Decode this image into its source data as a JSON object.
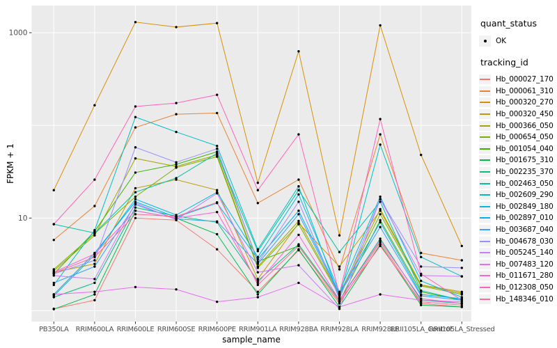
{
  "panel": {
    "bg": "#EBEBEB",
    "grid": "#FFFFFF",
    "tick_color": "#333333",
    "tick_label_color": "#4D4D4D",
    "point_color": "#000000",
    "legend_key_bg": "#F2F2F2"
  },
  "axes": {
    "x_label": "sample_name",
    "y_label": "FPKM + 1",
    "y_tick_labels": [
      "1000",
      "10"
    ],
    "y_tick_values": [
      1000,
      10
    ]
  },
  "legend": {
    "quant_status_title": "quant_status",
    "quant_status_items": [
      {
        "label": "OK",
        "marker": "black-point"
      }
    ],
    "tracking_id_title": "tracking_id"
  },
  "chart_data": {
    "type": "line",
    "title": "",
    "xlabel": "sample_name",
    "ylabel": "FPKM + 1",
    "y_scale": "log10",
    "ylim": [
      0.75,
      2000
    ],
    "grid": "on",
    "legend_position": "right",
    "y_gridline_values": [
      1,
      10,
      100,
      1000
    ],
    "categories": [
      "PB350LA",
      "RRIM600LA",
      "RRIM600LE",
      "RRIM600SE",
      "RRIM600PE",
      "RRIM901LA",
      "RRIM928BA",
      "RRIM928LA",
      "RRIM928LE",
      "RRII105LA_Control",
      "RRII105LA_Stressed"
    ],
    "series": [
      {
        "name": "Hb_000027_170",
        "color": "#F8766D",
        "values": [
          1.05,
          1.3,
          10,
          9.5,
          4.6,
          1.6,
          4.5,
          1.2,
          5.5,
          1.2,
          1.1
        ]
      },
      {
        "name": "Hb_000061_310",
        "color": "#EA8331",
        "values": [
          5.8,
          13.5,
          95,
          132,
          136,
          14.5,
          26,
          2.8,
          80,
          4.2,
          3.5
        ]
      },
      {
        "name": "Hb_000320_270",
        "color": "#D89000",
        "values": [
          20,
          165,
          1300,
          1150,
          1270,
          24,
          630,
          6.5,
          1200,
          48,
          5.0
        ]
      },
      {
        "name": "Hb_000320_450",
        "color": "#C09B00",
        "values": [
          2.6,
          3.2,
          21,
          26,
          20,
          2.2,
          8.8,
          3.0,
          12,
          1.9,
          1.6
        ]
      },
      {
        "name": "Hb_000366_050",
        "color": "#A3A500",
        "values": [
          2.7,
          6.5,
          44,
          36,
          48,
          3.0,
          9.3,
          1.5,
          12.5,
          1.9,
          1.55
        ]
      },
      {
        "name": "Hb_000654_050",
        "color": "#7CAE00",
        "values": [
          2.8,
          6.8,
          17,
          35,
          46,
          2.9,
          8.6,
          1.45,
          11,
          1.85,
          1.5
        ]
      },
      {
        "name": "Hb_001054_040",
        "color": "#39B600",
        "values": [
          2.5,
          7.2,
          31,
          38,
          52,
          3.4,
          5.0,
          1.25,
          9.5,
          1.6,
          1.3
        ]
      },
      {
        "name": "Hb_001675_310",
        "color": "#00BB4E",
        "values": [
          1.04,
          1.5,
          12,
          10,
          6.7,
          1.5,
          4.6,
          1.1,
          5.2,
          1.15,
          1.1
        ]
      },
      {
        "name": "Hb_002235_370",
        "color": "#00BF7D",
        "values": [
          1.4,
          2.0,
          13,
          10.5,
          9.0,
          2.1,
          5.2,
          1.3,
          6.0,
          1.3,
          1.2
        ]
      },
      {
        "name": "Hb_002463_050",
        "color": "#00C1A3",
        "values": [
          8.6,
          6.9,
          19,
          27,
          50,
          4.4,
          20,
          4.3,
          15,
          1.65,
          1.3
        ]
      },
      {
        "name": "Hb_002609_290",
        "color": "#00BFC4",
        "values": [
          1.9,
          7.4,
          123,
          85,
          60,
          4.6,
          22,
          1.4,
          62,
          3.8,
          2.35
        ]
      },
      {
        "name": "Hb_002849_180",
        "color": "#00BAE0",
        "values": [
          1.45,
          4.0,
          16,
          10.8,
          19,
          3.8,
          18,
          1.6,
          17,
          2.1,
          1.4
        ]
      },
      {
        "name": "Hb_002897_010",
        "color": "#00B0F6",
        "values": [
          1.5,
          4.2,
          15,
          10.2,
          14.5,
          3.6,
          12,
          1.55,
          9.0,
          1.5,
          1.35
        ]
      },
      {
        "name": "Hb_003687_040",
        "color": "#35A2FF",
        "values": [
          2.0,
          3.0,
          14,
          9.8,
          9.2,
          3.2,
          11,
          1.5,
          8.0,
          1.45,
          1.3
        ]
      },
      {
        "name": "Hb_004678_030",
        "color": "#9590FF",
        "values": [
          2.5,
          3.5,
          58,
          40,
          56,
          3.3,
          15,
          1.35,
          16,
          3.0,
          2.9
        ]
      },
      {
        "name": "Hb_005245_140",
        "color": "#C77CFF",
        "values": [
          2.4,
          2.2,
          14.5,
          9.6,
          18.5,
          2.6,
          3.1,
          1.05,
          16,
          2.4,
          2.35
        ]
      },
      {
        "name": "Hb_007483_120",
        "color": "#E76BF3",
        "values": [
          1.5,
          1.6,
          1.8,
          1.7,
          1.25,
          1.4,
          2.0,
          1.1,
          1.5,
          1.3,
          1.25
        ]
      },
      {
        "name": "Hb_011671_280",
        "color": "#FA62DB",
        "values": [
          2.6,
          4.1,
          12,
          10,
          11.6,
          2.0,
          6.6,
          1.3,
          5.7,
          1.35,
          1.2
        ]
      },
      {
        "name": "Hb_012308_050",
        "color": "#FF62BC",
        "values": [
          8.6,
          26,
          160,
          174,
          214,
          20,
          80,
          1.5,
          117,
          2.5,
          1.3
        ]
      },
      {
        "name": "Hb_148346_010",
        "color": "#FF6A98",
        "values": [
          2.55,
          3.8,
          11,
          10.4,
          14.8,
          1.9,
          5.0,
          1.25,
          5.0,
          1.25,
          1.15
        ]
      }
    ]
  }
}
